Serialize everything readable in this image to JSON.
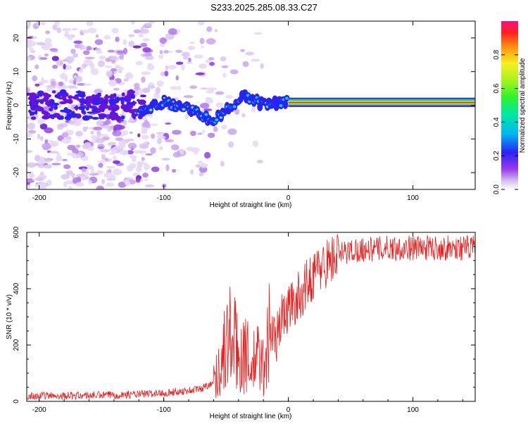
{
  "page_title": "S233.2025.285.08.33.C27",
  "chart_data": [
    {
      "type": "heatmap",
      "title": "S233.2025.285.08.33.C27",
      "xlabel": "Height of straight line (km)",
      "ylabel": "Frequency (Hz)",
      "xlim": [
        -210,
        150
      ],
      "ylim": [
        -25,
        25
      ],
      "x_ticks": [
        -200,
        -100,
        0,
        100
      ],
      "y_ticks": [
        -20,
        -10,
        0,
        10,
        20
      ],
      "colorbar": {
        "label": "Normalized spectral amplitude",
        "range": [
          0,
          1
        ],
        "ticks": [
          "0.0",
          "0.2",
          "0.4",
          "0.6",
          "0.8"
        ],
        "tick_values": [
          0,
          0.2,
          0.4,
          0.6,
          0.8
        ]
      },
      "description_track": [
        {
          "x": -120,
          "y": -1.5
        },
        {
          "x": -100,
          "y": 1
        },
        {
          "x": -80,
          "y": -1
        },
        {
          "x": -60,
          "y": -5
        },
        {
          "x": -45,
          "y": 0
        },
        {
          "x": -35,
          "y": 3
        },
        {
          "x": -20,
          "y": 0
        },
        {
          "x": 0,
          "y": 1
        },
        {
          "x": 150,
          "y": 1
        }
      ]
    },
    {
      "type": "line",
      "xlabel": "Height of straight line (km)",
      "ylabel": "SNR (10 * v/v)",
      "xlim": [
        -210,
        150
      ],
      "ylim": [
        0,
        600
      ],
      "x_ticks": [
        -200,
        -100,
        0,
        100
      ],
      "y_ticks": [
        0,
        200,
        400,
        600
      ],
      "series": [
        {
          "name": "SNR",
          "color": "#e8201f",
          "x": [
            -210,
            -180,
            -150,
            -120,
            -100,
            -80,
            -70,
            -60,
            -55,
            -50,
            -45,
            -40,
            -35,
            -30,
            -25,
            -20,
            -15,
            -10,
            -5,
            0,
            10,
            20,
            30,
            40,
            50,
            60,
            70,
            80,
            100,
            120,
            140,
            150
          ],
          "y": [
            20,
            20,
            22,
            25,
            30,
            38,
            45,
            70,
            120,
            200,
            240,
            150,
            190,
            110,
            160,
            120,
            250,
            220,
            300,
            330,
            380,
            450,
            490,
            520,
            535,
            540,
            540,
            545,
            545,
            545,
            545,
            545
          ]
        }
      ]
    }
  ]
}
